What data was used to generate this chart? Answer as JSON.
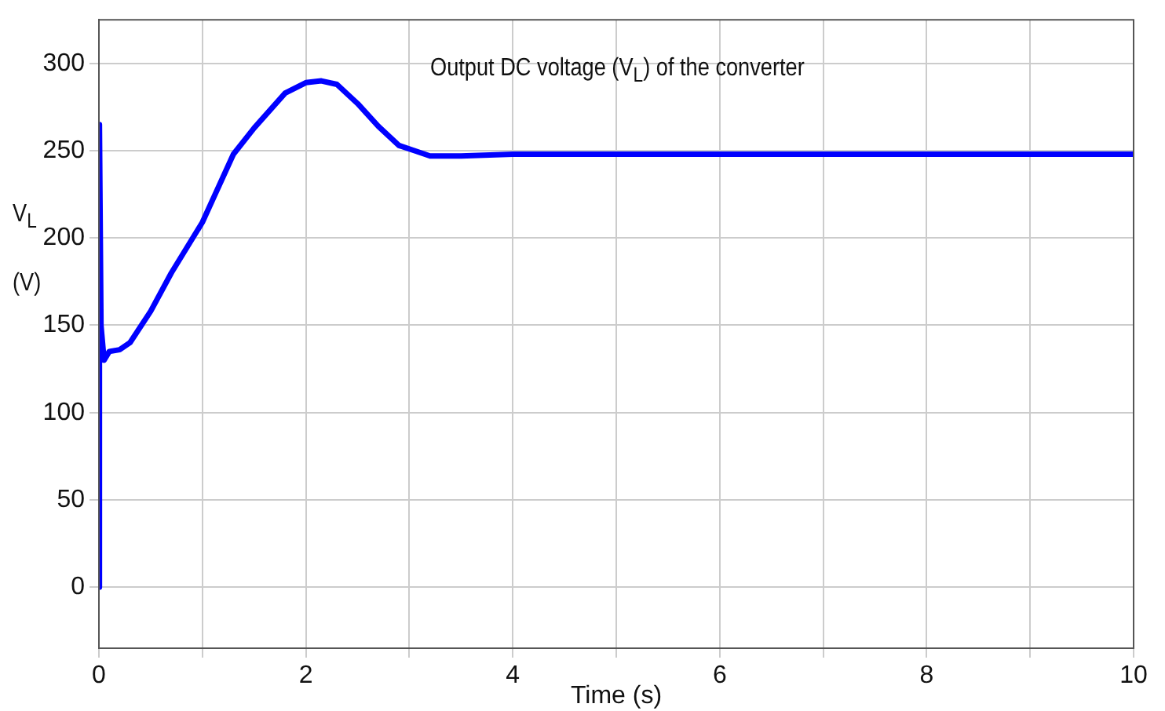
{
  "chart_data": {
    "type": "line",
    "xlabel": "Time (s)",
    "ylabel": "V$_{L}$ (V)",
    "annotations": [
      "Output DC voltage (V$_{L}$) of the converter"
    ],
    "x": [
      0,
      0.005,
      0.02,
      0.05,
      0.1,
      0.2,
      0.3,
      0.5,
      0.7,
      1,
      1.3,
      1.5,
      1.8,
      2,
      2.15,
      2.3,
      2.5,
      2.7,
      2.9,
      3.05,
      3.2,
      3.5,
      4,
      6,
      8,
      10
    ],
    "series": [
      {
        "color": "#0000ff",
        "values": [
          0,
          265,
          150,
          130,
          135,
          136,
          140,
          158,
          180,
          209,
          248,
          263,
          283,
          289,
          290,
          288,
          277,
          264,
          253,
          250,
          247,
          247,
          248,
          248,
          248,
          248
        ]
      }
    ],
    "xlim": [
      0,
      10
    ],
    "xticks": [
      0,
      {
        "value": 1,
        "label": null
      },
      2,
      {
        "value": 3,
        "label": null
      },
      4,
      {
        "value": 5,
        "label": null
      },
      6,
      {
        "value": 7,
        "label": null
      },
      8,
      {
        "value": 9,
        "label": null
      },
      10
    ],
    "ylim": [
      -35,
      325
    ],
    "yticks": [
      0,
      50,
      100,
      150,
      200,
      250,
      300
    ],
    "grid": true,
    "legend": false,
    "marker": "none",
    "line_style": "solid"
  }
}
